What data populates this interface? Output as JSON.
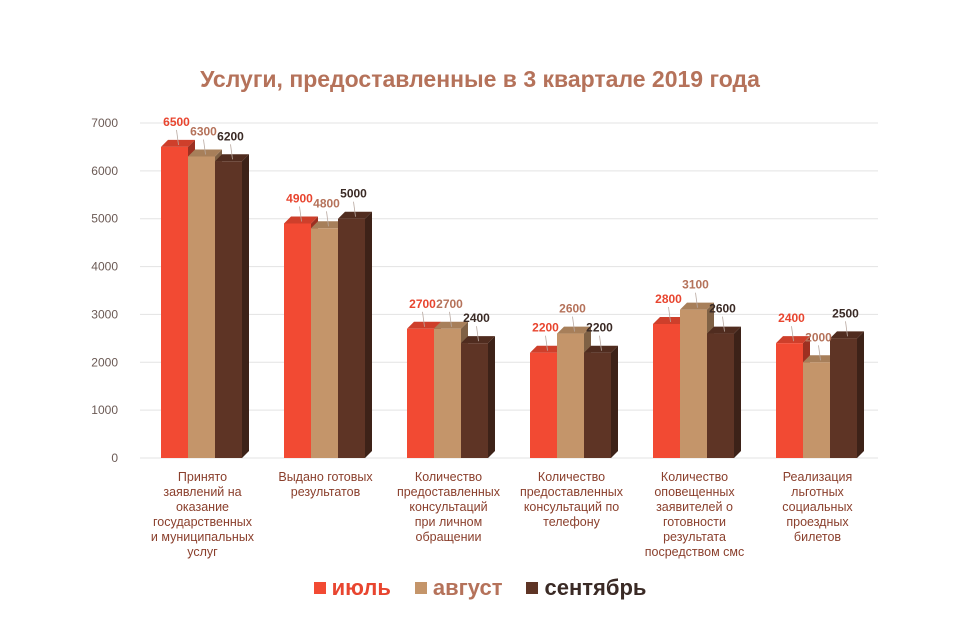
{
  "chart_data": {
    "type": "bar",
    "title": "Услуги, предоставленные в 3 квартале 2019 года",
    "categories": [
      [
        "Принято",
        "заявлений  на",
        "оказание",
        "государственных",
        "и муниципальных",
        "услуг"
      ],
      [
        "Выдано готовых",
        "результатов"
      ],
      [
        "Количество",
        "предоставленных",
        "консультаций",
        "при личном",
        "обращении"
      ],
      [
        "Количество",
        "предоставленных",
        "консультаций   по",
        "телефону"
      ],
      [
        "Количество",
        "оповещенных",
        "заявителей  о",
        "готовности",
        "результата",
        "посредством  смс"
      ],
      [
        "Реализация",
        "льготных",
        "социальных",
        "проездных",
        "билетов"
      ]
    ],
    "series": [
      {
        "name": "июль",
        "color": "#f24a33",
        "label_color": "#e8452f",
        "values": [
          6500,
          4900,
          2700,
          2200,
          2800,
          2400
        ]
      },
      {
        "name": "август",
        "color": "#c4956a",
        "label_color": "#b5725a",
        "values": [
          6300,
          4800,
          2700,
          2600,
          3100,
          2000
        ]
      },
      {
        "name": "сентябрь",
        "color": "#5e3425",
        "label_color": "#3a2a25",
        "values": [
          6200,
          5000,
          2400,
          2200,
          2600,
          2500
        ]
      }
    ],
    "yticks": [
      0,
      1000,
      2000,
      3000,
      4000,
      5000,
      6000,
      7000
    ],
    "ylim": [
      0,
      7000
    ],
    "grid": true,
    "legend_position": "bottom"
  }
}
